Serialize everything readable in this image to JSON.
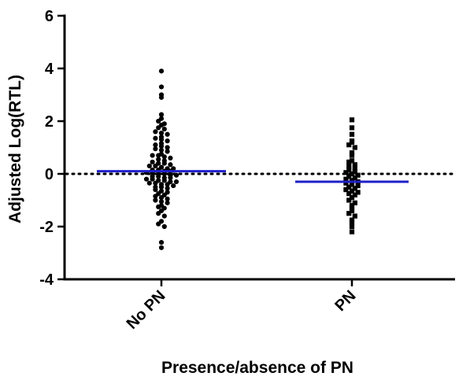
{
  "chart_data": {
    "type": "scatter",
    "subtype": "dot-plot",
    "title": "",
    "xlabel": "Presence/absence of PN",
    "ylabel": "Adjusted Log(RTL)",
    "ylim": [
      -4,
      6
    ],
    "yticks": [
      -4,
      -2,
      0,
      2,
      4,
      6
    ],
    "categories": [
      "No PN",
      "PN"
    ],
    "reference_line_y": 0,
    "mean_line_color": "#1f1fc8",
    "point_color": "#000000",
    "series": [
      {
        "category": "No PN",
        "marker": "circle",
        "mean": 0.1,
        "values": [
          3.9,
          3.3,
          3.0,
          2.9,
          2.25,
          2.1,
          2.0,
          1.9,
          1.85,
          1.75,
          1.7,
          1.6,
          1.55,
          1.5,
          1.4,
          1.35,
          1.3,
          1.25,
          1.15,
          1.1,
          1.05,
          1.0,
          0.95,
          0.9,
          0.85,
          0.75,
          0.7,
          0.7,
          0.65,
          0.6,
          0.55,
          0.5,
          0.45,
          0.4,
          0.4,
          0.35,
          0.3,
          0.3,
          0.25,
          0.2,
          0.2,
          0.15,
          0.15,
          0.1,
          0.1,
          0.05,
          0.05,
          0.0,
          0.0,
          -0.05,
          -0.05,
          -0.1,
          -0.1,
          -0.15,
          -0.15,
          -0.2,
          -0.2,
          -0.25,
          -0.25,
          -0.3,
          -0.3,
          -0.35,
          -0.35,
          -0.4,
          -0.4,
          -0.45,
          -0.5,
          -0.5,
          -0.55,
          -0.6,
          -0.65,
          -0.7,
          -0.75,
          -0.8,
          -0.85,
          -0.9,
          -0.95,
          -1.0,
          -1.05,
          -1.1,
          -1.2,
          -1.25,
          -1.3,
          -1.4,
          -1.5,
          -1.6,
          -1.8,
          -1.9,
          -2.0,
          -2.6,
          -2.8
        ]
      },
      {
        "category": "PN",
        "marker": "square",
        "mean": -0.3,
        "values": [
          2.05,
          1.75,
          1.5,
          1.25,
          1.2,
          1.1,
          1.0,
          0.8,
          0.7,
          0.5,
          0.45,
          0.35,
          0.3,
          0.2,
          0.15,
          0.1,
          0.05,
          0.0,
          -0.05,
          -0.1,
          -0.15,
          -0.2,
          -0.25,
          -0.3,
          -0.35,
          -0.4,
          -0.45,
          -0.5,
          -0.55,
          -0.6,
          -0.65,
          -0.7,
          -0.75,
          -0.8,
          -0.9,
          -1.0,
          -1.1,
          -1.2,
          -1.3,
          -1.4,
          -1.5,
          -1.6,
          -1.75,
          -1.85,
          -2.0,
          -2.2
        ]
      }
    ],
    "grid": false,
    "legend": "none"
  }
}
